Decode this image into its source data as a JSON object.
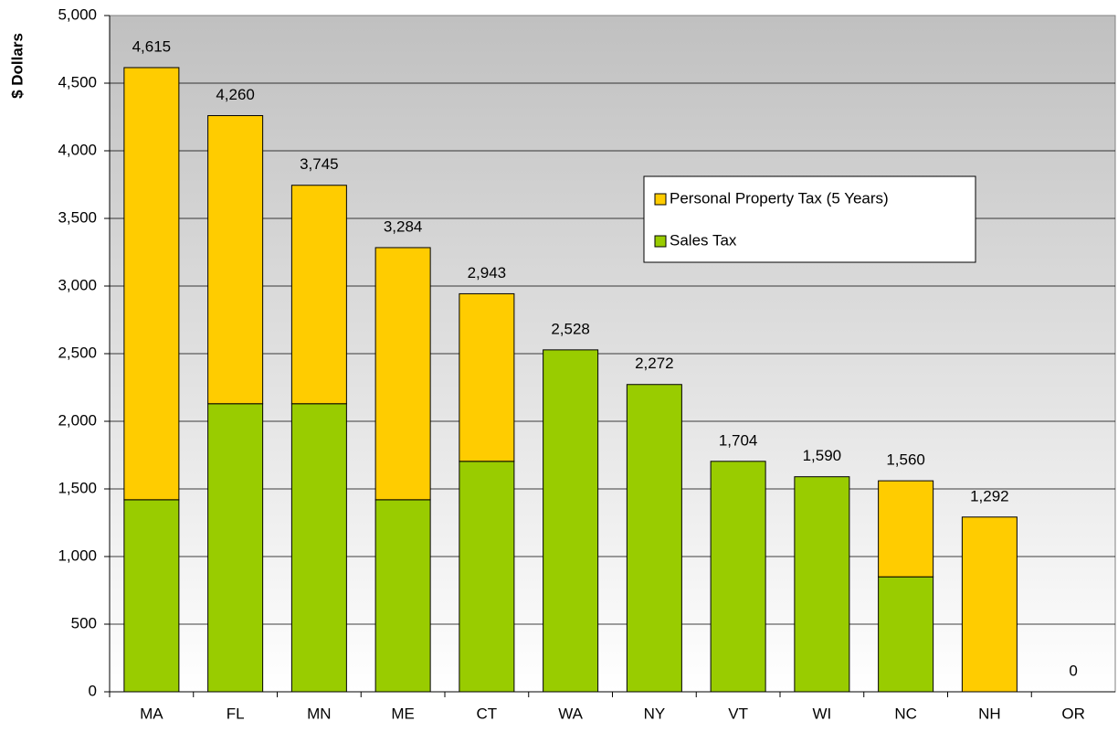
{
  "chart_data": {
    "type": "stacked_bar",
    "y_label": "$ Dollars",
    "categories": [
      "MA",
      "FL",
      "MN",
      "ME",
      "CT",
      "WA",
      "NY",
      "VT",
      "WI",
      "NC",
      "NH",
      "OR"
    ],
    "series": [
      {
        "name": "Sales Tax",
        "color": "#99cc00",
        "values": [
          1420,
          2130,
          2130,
          1420,
          1704,
          2528,
          2272,
          1704,
          1590,
          850,
          0,
          0
        ]
      },
      {
        "name": "Personal Property Tax (5 Years)",
        "color": "#ffcc00",
        "values": [
          3195,
          2130,
          1615,
          1864,
          1239,
          0,
          0,
          0,
          0,
          710,
          1292,
          0
        ]
      }
    ],
    "total_labels": [
      "4,615",
      "4,260",
      "3,745",
      "3,284",
      "2,943",
      "2,528",
      "2,272",
      "1,704",
      "1,590",
      "1,560",
      "1,292",
      "0"
    ],
    "ylim": [
      0,
      5000
    ],
    "yticks": [
      0,
      500,
      {
        "value": 1000,
        "label": "1,000"
      },
      {
        "value": 1500,
        "label": "1,500"
      },
      {
        "value": 2000,
        "label": "2,000"
      },
      {
        "value": 2500,
        "label": "2,500"
      },
      {
        "value": 3000,
        "label": "3,000"
      },
      {
        "value": 3500,
        "label": "3,500"
      },
      {
        "value": 4000,
        "label": "4,000"
      },
      {
        "value": 4500,
        "label": "4,500"
      },
      {
        "value": 5000,
        "label": "5,000"
      }
    ],
    "grid": true
  }
}
